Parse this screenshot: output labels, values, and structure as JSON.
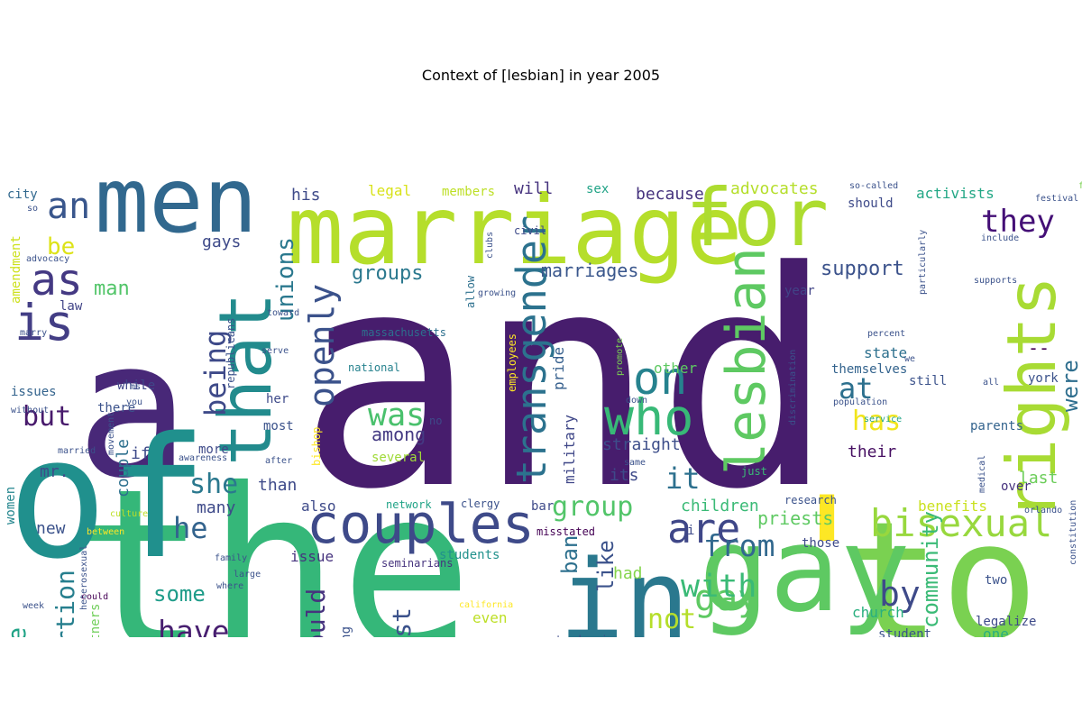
{
  "figure": {
    "title": "Context of [lesbian] in year 2005",
    "background": "#ffffff"
  },
  "word_cloud": {
    "palette": "viridis",
    "words": [
      {
        "text": "and",
        "color": "#471d6d"
      },
      {
        "text": "the",
        "color": "#35b779"
      },
      {
        "text": "a",
        "color": "#482878"
      },
      {
        "text": "of",
        "color": "#20908d"
      },
      {
        "text": "to",
        "color": "#7ad151"
      },
      {
        "text": "marriage",
        "color": "#b5de2b"
      },
      {
        "text": "'",
        "color": "#fde725"
      },
      {
        "text": "in",
        "color": "#2a788e"
      },
      {
        "text": "gay",
        "color": "#5ec962"
      },
      {
        "text": "men",
        "color": "#31688e"
      },
      {
        "text": "for",
        "color": "#addc30"
      },
      {
        "text": "that",
        "color": "#228b8d"
      },
      {
        "text": "rights",
        "color": "#a8db34"
      },
      {
        "text": "lesbian",
        "color": "#5ec962"
      },
      {
        "text": "couples",
        "color": "#3e4a89"
      },
      {
        "text": "who",
        "color": "#38b977"
      },
      {
        "text": "on",
        "color": "#26828e"
      },
      {
        "text": "is",
        "color": "#433e85"
      },
      {
        "text": "as",
        "color": "#443983"
      },
      {
        "text": "an",
        "color": "#39568c"
      },
      {
        "text": "are",
        "color": "#3f4788"
      },
      {
        "text": "bisexual",
        "color": "#98d83e"
      },
      {
        "text": "lesbians",
        "color": "#3b528b"
      },
      {
        "text": "gay",
        "color": "#5ec962"
      },
      {
        "text": "transgender",
        "color": "#2c728e"
      },
      {
        "text": "said",
        "color": "#2c728e"
      },
      {
        "text": "was",
        "color": "#4ac16d"
      },
      {
        "text": "openly",
        "color": "#3b528b"
      },
      {
        "text": "by",
        "color": "#3e4a89"
      },
      {
        "text": "with",
        "color": "#3aba76"
      },
      {
        "text": "from",
        "color": "#31688e"
      },
      {
        "text": "about",
        "color": "#414487"
      },
      {
        "text": "he",
        "color": "#33638d"
      },
      {
        "text": "she",
        "color": "#2a788e"
      },
      {
        "text": "or",
        "color": "#3d4e8a"
      },
      {
        "text": "have",
        "color": "#481f70"
      },
      {
        "text": "it",
        "color": "#2d708e"
      },
      {
        "text": "they",
        "color": "#440f76"
      },
      {
        "text": "has",
        "color": "#f1e51d"
      },
      {
        "text": "at",
        "color": "#2d708e"
      },
      {
        "text": "unions",
        "color": "#2a788e"
      },
      {
        "text": "not",
        "color": "#b5de2b"
      },
      {
        "text": "group",
        "color": "#52c569"
      },
      {
        "text": "being",
        "color": "#3e4a89"
      },
      {
        "text": "would",
        "color": "#46337e"
      },
      {
        "text": "against",
        "color": "#3b528b"
      },
      {
        "text": "abortion",
        "color": "#277f8e"
      },
      {
        "text": "people",
        "color": "#20a386"
      },
      {
        "text": "but",
        "color": "#481a6c"
      },
      {
        "text": "be",
        "color": "#dde318"
      },
      {
        "text": "were",
        "color": "#2e6e8e"
      },
      {
        "text": "community",
        "color": "#3aba76"
      },
      {
        "text": "support",
        "color": "#3b528b"
      },
      {
        "text": "groups",
        "color": "#2a788e"
      },
      {
        "text": "marriages",
        "color": "#39568c"
      },
      {
        "text": "among",
        "color": "#443a83"
      },
      {
        "text": "some",
        "color": "#1e9c89"
      },
      {
        "text": "which",
        "color": "#5ec962"
      },
      {
        "text": "leaders",
        "color": "#46337e"
      },
      {
        "text": "first",
        "color": "#35608d"
      },
      {
        "text": "ban",
        "color": "#2d708e"
      },
      {
        "text": "like",
        "color": "#3b528b"
      },
      {
        "text": "had",
        "color": "#84d44b"
      },
      {
        "text": "priests",
        "color": "#5ec962"
      },
      {
        "text": "children",
        "color": "#3aba76"
      },
      {
        "text": "benefits",
        "color": "#cae11f"
      },
      {
        "text": "straight",
        "color": "#3d4e8a"
      },
      {
        "text": "military",
        "color": "#3f4788"
      },
      {
        "text": "pride",
        "color": "#355f8d"
      },
      {
        "text": "state",
        "color": "#2d708e"
      },
      {
        "text": "themselves",
        "color": "#33638d"
      },
      {
        "text": "their",
        "color": "#471063"
      },
      {
        "text": "last",
        "color": "#6ccd5a"
      },
      {
        "text": "over",
        "color": "#46327e"
      },
      {
        "text": "church",
        "color": "#29af7f"
      },
      {
        "text": "this",
        "color": "#5ec962"
      },
      {
        "text": "one",
        "color": "#29af7f"
      },
      {
        "text": "man",
        "color": "#52c569"
      },
      {
        "text": "gays",
        "color": "#3e4a89"
      },
      {
        "text": "his",
        "color": "#3e4a89"
      },
      {
        "text": "legal",
        "color": "#d8e219"
      },
      {
        "text": "members",
        "color": "#bddf26"
      },
      {
        "text": "will",
        "color": "#46337e"
      },
      {
        "text": "sex",
        "color": "#20a386"
      },
      {
        "text": "because",
        "color": "#46337e"
      },
      {
        "text": "advocates",
        "color": "#b5de2b"
      },
      {
        "text": "activists",
        "color": "#22a785"
      },
      {
        "text": "should",
        "color": "#3e4a89"
      },
      {
        "text": "civil",
        "color": "#3e4a89"
      },
      {
        "text": "city",
        "color": "#31688e"
      },
      {
        "text": "amendment",
        "color": "#cde11d"
      },
      {
        "text": "law",
        "color": "#414487"
      },
      {
        "text": "issues",
        "color": "#33638d"
      },
      {
        "text": "while",
        "color": "#404688"
      },
      {
        "text": "there",
        "color": "#3b528b"
      },
      {
        "text": "if",
        "color": "#3e4a89"
      },
      {
        "text": "mr.",
        "color": "#3e4a89"
      },
      {
        "text": "couple",
        "color": "#2d708e"
      },
      {
        "text": "more",
        "color": "#3e4a89"
      },
      {
        "text": "women",
        "color": "#24868e"
      },
      {
        "text": "new",
        "color": "#3b528b"
      },
      {
        "text": "many",
        "color": "#3e4a89"
      },
      {
        "text": "than",
        "color": "#3e4a89"
      },
      {
        "text": "also",
        "color": "#3e4a89"
      },
      {
        "text": "issue",
        "color": "#46337e"
      },
      {
        "text": "students",
        "color": "#21918c"
      },
      {
        "text": "its",
        "color": "#3e4a89"
      },
      {
        "text": "other",
        "color": "#5ec962"
      },
      {
        "text": "year",
        "color": "#414487"
      },
      {
        "text": "--",
        "color": "#440154"
      },
      {
        "text": "york",
        "color": "#3b528b"
      },
      {
        "text": "still",
        "color": "#3b528b"
      },
      {
        "text": "parents",
        "color": "#33638d"
      },
      {
        "text": "republicans",
        "color": "#3b528b"
      },
      {
        "text": "bishop",
        "color": "#fde725"
      },
      {
        "text": "several",
        "color": "#a0da39"
      },
      {
        "text": "most",
        "color": "#3b528b"
      },
      {
        "text": "her",
        "color": "#3e4a89"
      },
      {
        "text": "partners",
        "color": "#6ece58"
      },
      {
        "text": "favor",
        "color": "#46337e"
      },
      {
        "text": "out",
        "color": "#3b528b"
      },
      {
        "text": "including",
        "color": "#3b528b"
      },
      {
        "text": "banning",
        "color": "#3b528b"
      },
      {
        "text": "even",
        "color": "#bddf26"
      },
      {
        "text": "tendencies",
        "color": "#3e4a89"
      },
      {
        "text": "legalize",
        "color": "#3e4a89"
      },
      {
        "text": "right",
        "color": "#3b528b"
      },
      {
        "text": "say",
        "color": "#3e4a89"
      },
      {
        "text": "those",
        "color": "#3e4a89"
      },
      {
        "text": "i",
        "color": "#3e4a89"
      },
      {
        "text": "bar",
        "color": "#3e4a89"
      },
      {
        "text": "two",
        "color": "#3b528b"
      },
      {
        "text": "student",
        "color": "#3b528b"
      },
      {
        "text": "massachusetts",
        "color": "#2d708e"
      },
      {
        "text": "employees",
        "color": "#fde725"
      },
      {
        "text": "just",
        "color": "#3aba76"
      },
      {
        "text": "clergy",
        "color": "#3b528b"
      },
      {
        "text": "research",
        "color": "#3b528b"
      },
      {
        "text": "inmates",
        "color": "#22a785"
      },
      {
        "text": "misstated",
        "color": "#440154"
      },
      {
        "text": "seminarians",
        "color": "#46337e"
      },
      {
        "text": "network",
        "color": "#20a386"
      },
      {
        "text": "national",
        "color": "#26828e"
      },
      {
        "text": "serve",
        "color": "#3b528b"
      },
      {
        "text": "president",
        "color": "#3b528b"
      },
      {
        "text": "allow",
        "color": "#2d708e"
      },
      {
        "text": "growing",
        "color": "#3b528b"
      },
      {
        "text": "toward",
        "color": "#3b528b"
      },
      {
        "text": "percent",
        "color": "#3b528b"
      },
      {
        "text": "we",
        "color": "#3b528b"
      },
      {
        "text": "service",
        "color": "#20a386"
      },
      {
        "text": "discrimination",
        "color": "#3b528b"
      },
      {
        "text": "population",
        "color": "#3b528b"
      },
      {
        "text": "down",
        "color": "#3b528b"
      },
      {
        "text": "promote",
        "color": "#7ad151"
      },
      {
        "text": "no",
        "color": "#3e4a89"
      },
      {
        "text": "director",
        "color": "#3b528b"
      },
      {
        "text": "california",
        "color": "#fde725"
      },
      {
        "text": "when",
        "color": "#3b528b"
      },
      {
        "text": "been",
        "color": "#3b528b"
      },
      {
        "text": "health",
        "color": "#3b528b"
      },
      {
        "text": "him",
        "color": "#3b528b"
      },
      {
        "text": "already",
        "color": "#fde725"
      },
      {
        "text": "into",
        "color": "#3b528b"
      },
      {
        "text": "center",
        "color": "#3b528b"
      },
      {
        "text": "policy",
        "color": "#3b528b"
      },
      {
        "text": "constitutional",
        "color": "#3b528b"
      },
      {
        "text": "heterosexual",
        "color": "#3b528b"
      },
      {
        "text": "does",
        "color": "#3b528b"
      },
      {
        "text": "where",
        "color": "#3b528b"
      },
      {
        "text": "family",
        "color": "#3b528b"
      },
      {
        "text": "large",
        "color": "#3b528b"
      },
      {
        "text": "could",
        "color": "#440154"
      },
      {
        "text": "between",
        "color": "#fde725"
      },
      {
        "text": "week",
        "color": "#3b528b"
      },
      {
        "text": "culture",
        "color": "#bddf26"
      },
      {
        "text": "married",
        "color": "#3b528b"
      },
      {
        "text": "awareness",
        "color": "#3b528b"
      },
      {
        "text": "after",
        "color": "#3b528b"
      },
      {
        "text": "same",
        "color": "#3b528b"
      },
      {
        "text": "without",
        "color": "#3b528b"
      },
      {
        "text": "you",
        "color": "#3b528b"
      },
      {
        "text": "ms.",
        "color": "#3b528b"
      },
      {
        "text": "movement",
        "color": "#3b528b"
      },
      {
        "text": "marry",
        "color": "#3b528b"
      },
      {
        "text": "advocacy",
        "color": "#3b528b"
      },
      {
        "text": "so",
        "color": "#3b528b"
      },
      {
        "text": "clubs",
        "color": "#3b528b"
      },
      {
        "text": "so-called",
        "color": "#3b528b"
      },
      {
        "text": "friends",
        "color": "#7ad151"
      },
      {
        "text": "festival",
        "color": "#3b528b"
      },
      {
        "text": "include",
        "color": "#3b528b"
      },
      {
        "text": "particularly",
        "color": "#3b528b"
      },
      {
        "text": "supports",
        "color": "#3b528b"
      },
      {
        "text": "all",
        "color": "#3b528b"
      },
      {
        "text": "medical",
        "color": "#3b528b"
      },
      {
        "text": "orlando",
        "color": "#3b528b"
      },
      {
        "text": "constitution",
        "color": "#3b528b"
      },
      {
        "text": "randall",
        "color": "#3b528b"
      },
      {
        "text": "officials",
        "color": "#fde725"
      },
      {
        "text": "work",
        "color": "#fde725"
      }
    ]
  }
}
